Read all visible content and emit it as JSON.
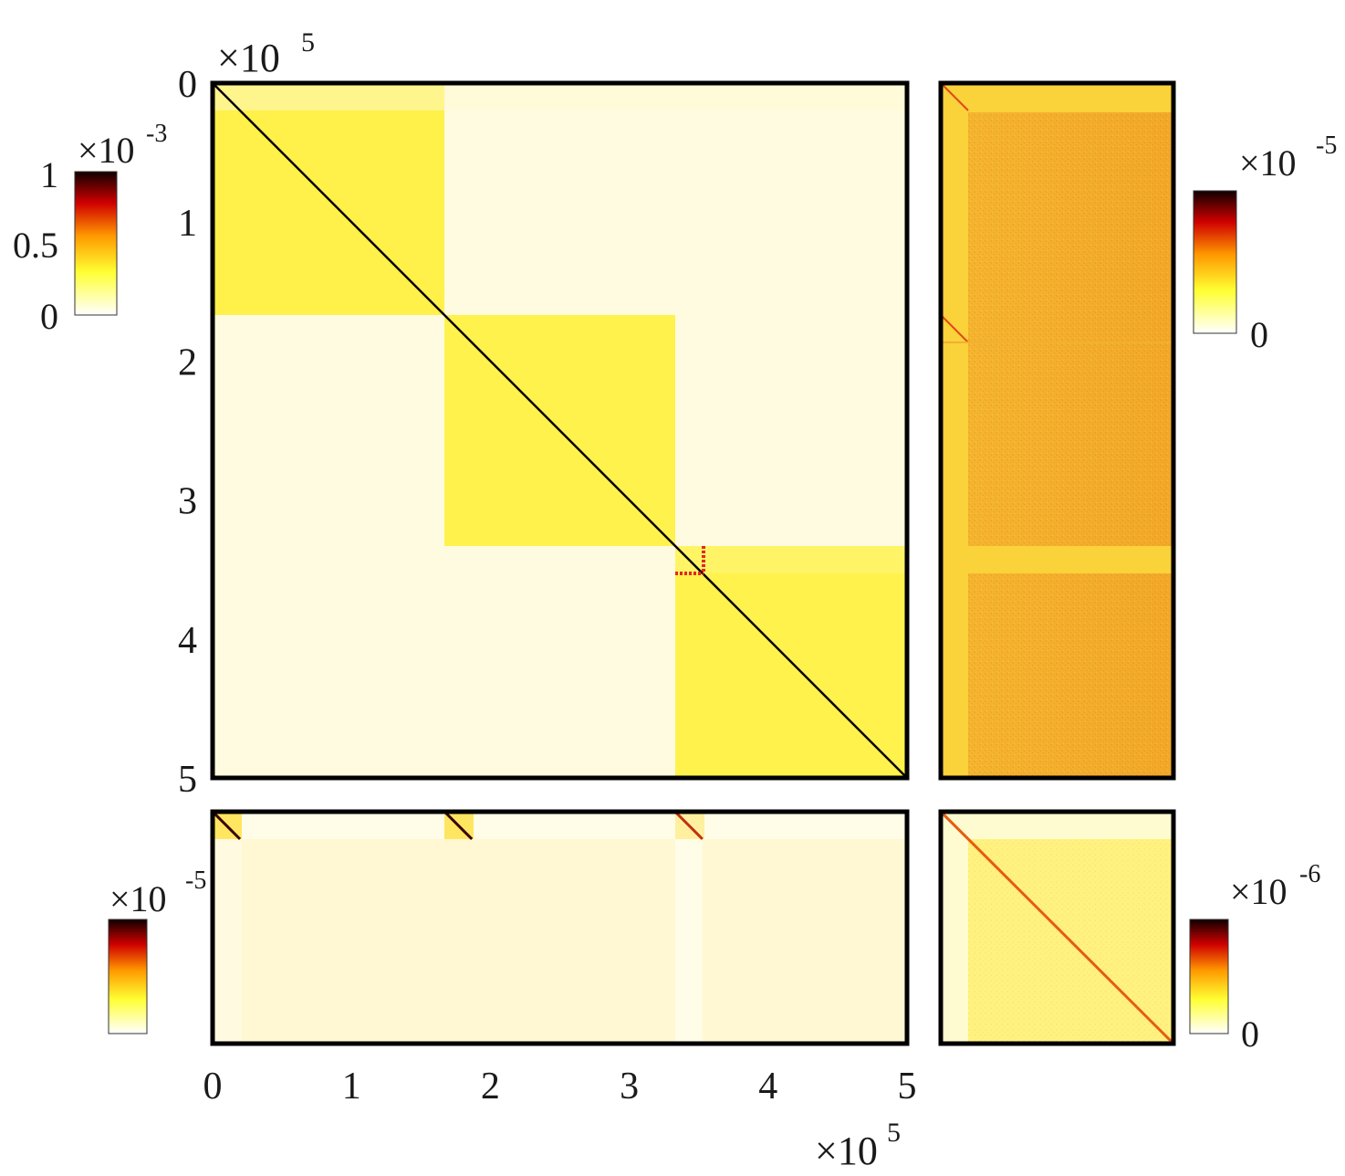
{
  "chart_data": [
    {
      "type": "heatmap",
      "panel": "main",
      "title": "",
      "xlabel": "",
      "ylabel": "",
      "xlim": [
        0,
        5
      ],
      "ylim": [
        0,
        5
      ],
      "x_multiplier": "×10^5",
      "y_multiplier": "×10^5",
      "x_ticks": [
        "0",
        "1",
        "2",
        "3",
        "4",
        "5"
      ],
      "y_ticks": [
        "0",
        "1",
        "2",
        "3",
        "4",
        "5"
      ],
      "blocks": [
        {
          "range": [
            0,
            1.67
          ],
          "level": 0.3
        },
        {
          "range": [
            1.67,
            3.33
          ],
          "level": 0.3
        },
        {
          "range": [
            3.33,
            5
          ],
          "level": 0.3
        }
      ],
      "diagonal_level": 1.0,
      "highlight": {
        "x": 3.53,
        "y": 3.53,
        "span": 0.2
      },
      "colorbar": {
        "min": "0",
        "mid": "0.5",
        "max": "1",
        "multiplier": "×10^-3",
        "colormap": "hot-reversed"
      }
    },
    {
      "type": "heatmap",
      "panel": "right",
      "blocks": [
        {
          "range": [
            0,
            1.67
          ],
          "level": 0.45
        },
        {
          "range": [
            1.67,
            3.33
          ],
          "level": 0.45
        },
        {
          "range": [
            3.33,
            5
          ],
          "level": 0.45
        }
      ],
      "colorbar": {
        "min": "0",
        "multiplier": "×10^-5",
        "colormap": "hot-reversed"
      }
    },
    {
      "type": "heatmap",
      "panel": "bottom",
      "xlim": [
        0,
        5
      ],
      "x_ticks": [
        "0",
        "1",
        "2",
        "3",
        "4",
        "5"
      ],
      "x_multiplier": "×10^5",
      "diagonal_segments_start": [
        0,
        1.67,
        3.33
      ],
      "colorbar": {
        "multiplier": "×10^-5",
        "colormap": "hot-reversed"
      }
    },
    {
      "type": "heatmap",
      "panel": "corner",
      "diagonal_level": 0.55,
      "colorbar": {
        "min": "0",
        "multiplier": "×10^-6",
        "colormap": "hot-reversed"
      }
    }
  ],
  "colors": {
    "light": "#fffbe0",
    "block": "#fff24a",
    "orange": "#f8b62a",
    "red": "#e02a10",
    "dark": "#120000",
    "frame": "#000000"
  },
  "labels": {
    "base": "×10",
    "exp_5": "5",
    "exp_neg3": "-3",
    "exp_neg5": "-5",
    "exp_neg6": "-6"
  }
}
